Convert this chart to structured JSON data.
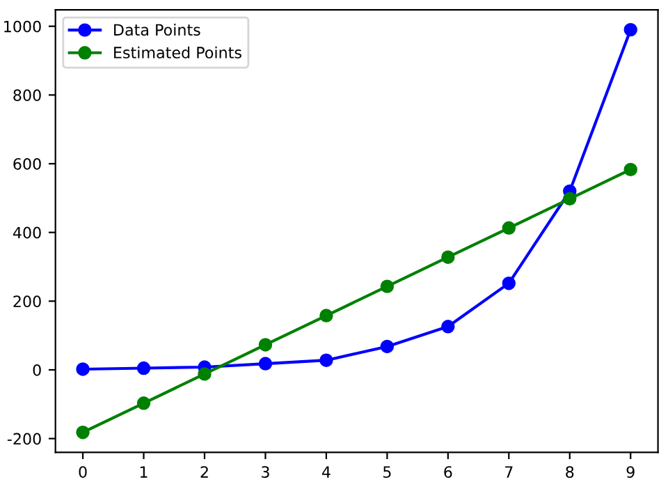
{
  "chart_data": {
    "type": "line",
    "x": [
      0,
      1,
      2,
      3,
      4,
      5,
      6,
      7,
      8,
      9
    ],
    "series": [
      {
        "name": "Data Points",
        "color": "#0000ff",
        "values": [
          2,
          5,
          8,
          18,
          28,
          68,
          126,
          252,
          520,
          990
        ]
      },
      {
        "name": "Estimated Points",
        "color": "#008000",
        "values": [
          -182,
          -97,
          -12,
          73,
          158,
          243,
          328,
          413,
          498,
          583
        ]
      }
    ],
    "xlim": [
      -0.45,
      9.45
    ],
    "xticks": [
      0,
      1,
      2,
      3,
      4,
      5,
      6,
      7,
      8,
      9
    ],
    "ylim": [
      -240,
      1048
    ],
    "yticks": [
      -200,
      0,
      200,
      400,
      600,
      800,
      1000
    ],
    "marker": "circle",
    "line_style": "solid",
    "legend": "top left",
    "grid": false
  }
}
